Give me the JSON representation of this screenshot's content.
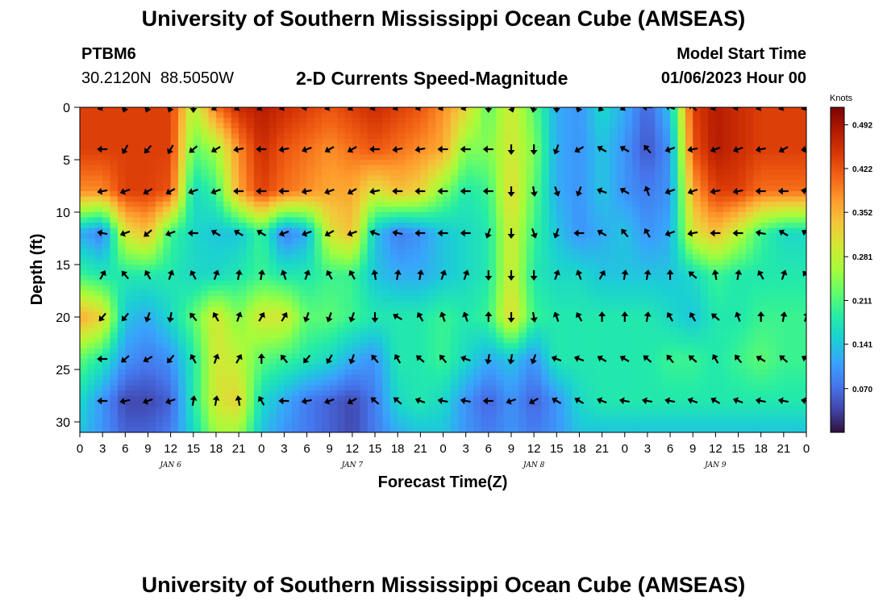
{
  "header": {
    "title": "University of Southern Mississippi Ocean Cube (AMSEAS)",
    "station_id": "PTBM6",
    "coordinates": "30.2120N  88.5050W",
    "subtitle": "2-D Currents Speed-Magnitude",
    "model_start_label": "Model Start Time",
    "model_start_value": "01/06/2023 Hour 00"
  },
  "footer": {
    "title": "University of Southern Mississippi Ocean Cube (AMSEAS)"
  },
  "chart_data": {
    "type": "heatmap",
    "xlabel": "Forecast Time(Z)",
    "ylabel": "Depth (ft)",
    "x_ticks": [
      "0",
      "3",
      "6",
      "9",
      "12",
      "15",
      "18",
      "21",
      "0",
      "3",
      "6",
      "9",
      "12",
      "15",
      "18",
      "21",
      "0",
      "3",
      "6",
      "9",
      "12",
      "15",
      "18",
      "21",
      "0",
      "3",
      "6",
      "9",
      "12",
      "15",
      "18",
      "21",
      "0"
    ],
    "x_hours": [
      0,
      3,
      6,
      9,
      12,
      15,
      18,
      21,
      24,
      27,
      30,
      33,
      36,
      39,
      42,
      45,
      48,
      51,
      54,
      57,
      60,
      63,
      66,
      69,
      72,
      75,
      78,
      81,
      84,
      87,
      90,
      93,
      96
    ],
    "x_range": [
      0,
      96
    ],
    "day_labels": [
      {
        "text": "JAN 6",
        "hour": 12
      },
      {
        "text": "JAN 7",
        "hour": 36
      },
      {
        "text": "JAN 8",
        "hour": 60
      },
      {
        "text": "JAN 9",
        "hour": 84
      }
    ],
    "y_ticks": [
      0,
      5,
      10,
      15,
      20,
      25,
      30
    ],
    "ylim": [
      0,
      31
    ],
    "y_inverted": true,
    "colorbar": {
      "unit": "Knots",
      "tick_values": [
        0.492,
        0.422,
        0.352,
        0.281,
        0.211,
        0.141,
        0.07
      ],
      "tick_labels": [
        "0.492",
        "0.422",
        "0.352",
        "0.281",
        "0.211",
        "0.141",
        "0.070"
      ],
      "range": [
        0.0,
        0.52
      ],
      "colors": [
        "#30123b",
        "#4145ab",
        "#4675ed",
        "#39a2fc",
        "#1bcfd4",
        "#24eca6",
        "#61fc6c",
        "#a4fc3b",
        "#d1e834",
        "#f3c63a",
        "#fe9b2d",
        "#f36315",
        "#d93806",
        "#b11901",
        "#7a0402"
      ]
    },
    "depths": [
      0,
      4,
      8,
      12,
      16,
      20,
      24,
      28,
      31
    ],
    "times": [
      0,
      3,
      6,
      9,
      12,
      15,
      18,
      21,
      24,
      27,
      30,
      33,
      36,
      39,
      42,
      45,
      48,
      51,
      54,
      57,
      60,
      63,
      66,
      69,
      72,
      75,
      78,
      81,
      84,
      87,
      90,
      93,
      96
    ],
    "speed_knots": [
      [
        0.44,
        0.44,
        0.44,
        0.44,
        0.44,
        0.27,
        0.4,
        0.46,
        0.48,
        0.46,
        0.44,
        0.42,
        0.44,
        0.46,
        0.44,
        0.42,
        0.38,
        0.32,
        0.22,
        0.3,
        0.22,
        0.12,
        0.1,
        0.16,
        0.12,
        0.06,
        0.14,
        0.44,
        0.48,
        0.46,
        0.44,
        0.44,
        0.44
      ],
      [
        0.44,
        0.44,
        0.44,
        0.44,
        0.44,
        0.22,
        0.26,
        0.38,
        0.46,
        0.42,
        0.4,
        0.38,
        0.4,
        0.42,
        0.4,
        0.38,
        0.36,
        0.24,
        0.24,
        0.3,
        0.24,
        0.12,
        0.1,
        0.14,
        0.1,
        0.05,
        0.1,
        0.42,
        0.48,
        0.46,
        0.44,
        0.44,
        0.44
      ],
      [
        0.38,
        0.38,
        0.44,
        0.44,
        0.42,
        0.16,
        0.2,
        0.36,
        0.44,
        0.4,
        0.38,
        0.36,
        0.36,
        0.3,
        0.34,
        0.32,
        0.24,
        0.18,
        0.2,
        0.32,
        0.22,
        0.12,
        0.1,
        0.14,
        0.1,
        0.08,
        0.1,
        0.36,
        0.44,
        0.44,
        0.4,
        0.4,
        0.4
      ],
      [
        0.12,
        0.08,
        0.3,
        0.34,
        0.2,
        0.16,
        0.14,
        0.14,
        0.2,
        0.08,
        0.12,
        0.3,
        0.34,
        0.14,
        0.08,
        0.1,
        0.14,
        0.16,
        0.18,
        0.3,
        0.2,
        0.14,
        0.1,
        0.12,
        0.14,
        0.1,
        0.12,
        0.3,
        0.34,
        0.28,
        0.2,
        0.16,
        0.16
      ],
      [
        0.2,
        0.18,
        0.18,
        0.18,
        0.18,
        0.16,
        0.16,
        0.18,
        0.2,
        0.18,
        0.18,
        0.2,
        0.2,
        0.14,
        0.12,
        0.12,
        0.14,
        0.16,
        0.18,
        0.3,
        0.18,
        0.16,
        0.16,
        0.14,
        0.14,
        0.14,
        0.14,
        0.16,
        0.2,
        0.18,
        0.18,
        0.18,
        0.18
      ],
      [
        0.36,
        0.32,
        0.14,
        0.12,
        0.16,
        0.22,
        0.3,
        0.24,
        0.3,
        0.3,
        0.22,
        0.22,
        0.2,
        0.18,
        0.18,
        0.18,
        0.2,
        0.18,
        0.2,
        0.32,
        0.2,
        0.18,
        0.18,
        0.18,
        0.18,
        0.18,
        0.16,
        0.14,
        0.18,
        0.18,
        0.2,
        0.2,
        0.2
      ],
      [
        0.22,
        0.18,
        0.1,
        0.08,
        0.1,
        0.18,
        0.3,
        0.28,
        0.22,
        0.2,
        0.18,
        0.16,
        0.12,
        0.1,
        0.18,
        0.18,
        0.2,
        0.16,
        0.12,
        0.14,
        0.1,
        0.18,
        0.18,
        0.18,
        0.18,
        0.18,
        0.2,
        0.2,
        0.18,
        0.2,
        0.22,
        0.2,
        0.2
      ],
      [
        0.16,
        0.1,
        0.04,
        0.04,
        0.06,
        0.18,
        0.3,
        0.32,
        0.16,
        0.12,
        0.08,
        0.06,
        0.04,
        0.08,
        0.16,
        0.18,
        0.16,
        0.1,
        0.06,
        0.1,
        0.06,
        0.1,
        0.16,
        0.18,
        0.18,
        0.18,
        0.18,
        0.18,
        0.18,
        0.18,
        0.18,
        0.18,
        0.18
      ],
      [
        0.14,
        0.1,
        0.06,
        0.06,
        0.08,
        0.16,
        0.26,
        0.26,
        0.14,
        0.1,
        0.08,
        0.06,
        0.04,
        0.08,
        0.12,
        0.14,
        0.14,
        0.1,
        0.08,
        0.1,
        0.08,
        0.1,
        0.14,
        0.14,
        0.14,
        0.14,
        0.14,
        0.14,
        0.14,
        0.14,
        0.14,
        0.14,
        0.14
      ]
    ],
    "vectors": {
      "depths": [
        0,
        4,
        8,
        12,
        16,
        20,
        24,
        28
      ],
      "times": [
        3,
        6,
        9,
        12,
        15,
        18,
        21,
        24,
        27,
        30,
        33,
        36,
        39,
        42,
        45,
        48,
        51,
        54,
        57,
        60,
        63,
        66,
        69,
        72,
        75,
        78,
        81,
        84,
        87,
        90,
        93,
        96
      ],
      "direction_deg": [
        [
          250,
          200,
          200,
          200,
          180,
          240,
          240,
          240,
          250,
          260,
          250,
          240,
          250,
          250,
          250,
          250,
          250,
          180,
          160,
          190,
          180,
          200,
          220,
          240,
          270,
          290,
          310,
          250,
          260,
          250,
          250,
          250
        ],
        [
          270,
          210,
          220,
          210,
          230,
          240,
          260,
          270,
          260,
          250,
          240,
          240,
          270,
          260,
          260,
          270,
          270,
          270,
          180,
          180,
          200,
          240,
          300,
          300,
          320,
          250,
          260,
          250,
          250,
          260,
          240,
          260
        ],
        [
          260,
          250,
          240,
          240,
          250,
          250,
          270,
          270,
          270,
          260,
          250,
          240,
          260,
          270,
          270,
          270,
          270,
          270,
          180,
          170,
          160,
          200,
          290,
          300,
          340,
          250,
          250,
          260,
          260,
          270,
          270,
          280
        ],
        [
          280,
          250,
          230,
          250,
          270,
          300,
          300,
          300,
          250,
          250,
          240,
          250,
          290,
          280,
          270,
          270,
          270,
          200,
          180,
          160,
          200,
          270,
          300,
          320,
          330,
          250,
          260,
          270,
          270,
          280,
          300,
          300
        ],
        [
          30,
          320,
          330,
          20,
          330,
          20,
          10,
          10,
          340,
          20,
          330,
          330,
          350,
          10,
          10,
          20,
          20,
          180,
          180,
          180,
          20,
          340,
          30,
          10,
          10,
          0,
          310,
          350,
          10,
          330,
          20,
          320
        ],
        [
          220,
          220,
          200,
          190,
          320,
          330,
          20,
          30,
          30,
          200,
          200,
          200,
          180,
          300,
          330,
          340,
          340,
          0,
          180,
          170,
          340,
          330,
          0,
          0,
          10,
          330,
          330,
          310,
          340,
          0,
          10,
          20
        ],
        [
          270,
          230,
          240,
          220,
          330,
          20,
          30,
          0,
          320,
          220,
          210,
          200,
          320,
          330,
          310,
          320,
          290,
          190,
          190,
          200,
          290,
          290,
          300,
          300,
          310,
          320,
          310,
          330,
          320,
          300,
          310,
          300
        ],
        [
          270,
          260,
          250,
          250,
          10,
          10,
          350,
          330,
          270,
          260,
          250,
          240,
          310,
          310,
          290,
          280,
          280,
          270,
          250,
          240,
          300,
          300,
          290,
          280,
          280,
          280,
          290,
          300,
          290,
          280,
          280,
          280
        ]
      ]
    }
  }
}
